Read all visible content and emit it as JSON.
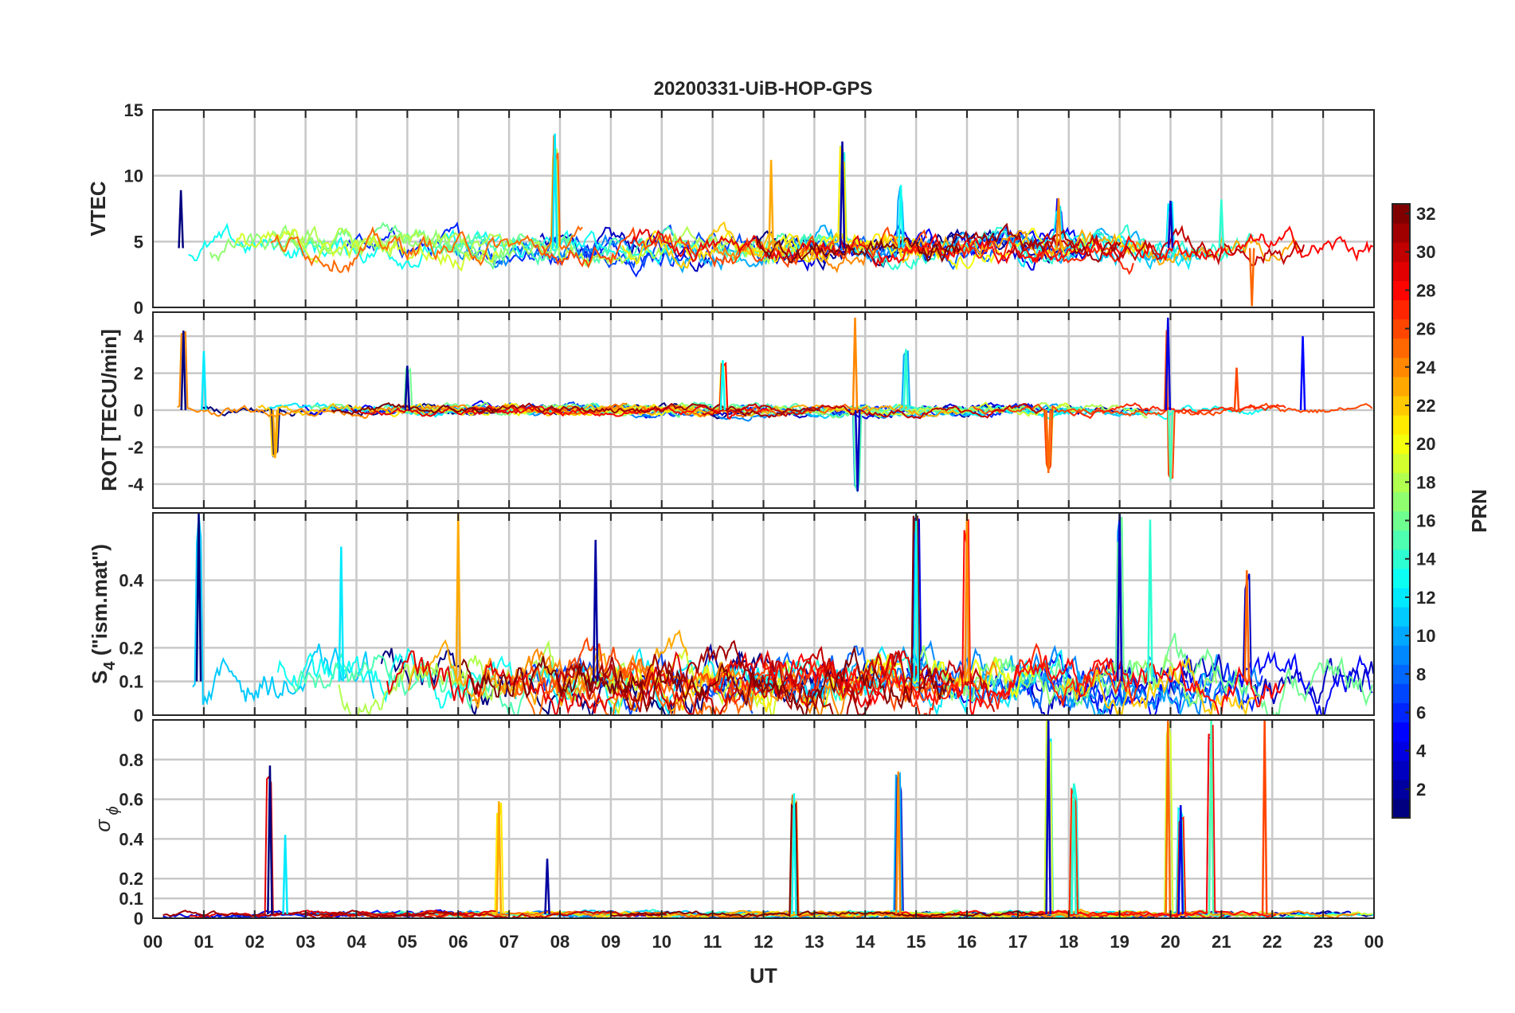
{
  "title": "20200331-UiB-HOP-GPS",
  "chart_data": {
    "type": "line",
    "title": "20200331-UiB-HOP-GPS",
    "xlabel": "UT",
    "x_ticks": [
      "00",
      "01",
      "02",
      "03",
      "04",
      "05",
      "06",
      "07",
      "08",
      "09",
      "10",
      "11",
      "12",
      "13",
      "14",
      "15",
      "16",
      "17",
      "18",
      "19",
      "20",
      "21",
      "22",
      "23",
      "00"
    ],
    "xlim": [
      0,
      24
    ],
    "panels": [
      {
        "id": "vtec",
        "ylabel": "VTEC",
        "ylim": [
          0,
          15
        ],
        "y_ticks": [
          0,
          5,
          10,
          15
        ],
        "y_tick_labels": [
          "0",
          "5",
          "10",
          "15"
        ],
        "baseline": 4.5,
        "amplitude": 1.2,
        "peaks": [
          [
            0.55,
            8.9
          ],
          [
            7.9,
            13.2
          ],
          [
            12.15,
            11.2
          ],
          [
            13.55,
            12.6
          ],
          [
            14.7,
            9.3
          ],
          [
            17.8,
            8.3
          ],
          [
            20.0,
            8.1
          ],
          [
            21.0,
            8.2
          ],
          [
            21.6,
            0.1
          ]
        ]
      },
      {
        "id": "rot",
        "ylabel": "ROT [TECU/min]",
        "ylim": [
          -5.3,
          5.3
        ],
        "y_ticks": [
          -4,
          -2,
          0,
          2,
          4
        ],
        "y_tick_labels": [
          "-4",
          "-2",
          "0",
          "2",
          "4"
        ],
        "baseline": 0,
        "amplitude": 0.3,
        "peaks": [
          [
            0.6,
            4.3
          ],
          [
            1.0,
            3.2
          ],
          [
            2.4,
            -2.6
          ],
          [
            5.0,
            2.4
          ],
          [
            11.2,
            2.7
          ],
          [
            13.8,
            5.0
          ],
          [
            13.85,
            -4.4
          ],
          [
            14.8,
            3.3
          ],
          [
            17.6,
            -3.4
          ],
          [
            19.95,
            5.0
          ],
          [
            20.0,
            -3.8
          ],
          [
            21.3,
            2.3
          ],
          [
            22.6,
            4.0
          ]
        ]
      },
      {
        "id": "s4",
        "ylabel_main": "S",
        "ylabel_sub": "4",
        "ylabel_suffix": " (\"ism.mat\")",
        "ylim": [
          0,
          0.6
        ],
        "y_ticks": [
          0,
          0.1,
          0.2,
          0.4
        ],
        "y_tick_labels": [
          "0",
          "0.1",
          "0.2",
          "0.4"
        ],
        "baseline": 0.1,
        "amplitude": 0.08,
        "peaks": [
          [
            0.9,
            0.6
          ],
          [
            3.7,
            0.5
          ],
          [
            6.0,
            0.6
          ],
          [
            8.7,
            0.52
          ],
          [
            15.0,
            0.6
          ],
          [
            16.0,
            0.6
          ],
          [
            19.0,
            0.6
          ],
          [
            19.6,
            0.58
          ],
          [
            21.5,
            0.43
          ]
        ]
      },
      {
        "id": "sigma_phi",
        "ylabel": "σ",
        "ylabel_sub": "ϕ",
        "ylim": [
          0,
          1
        ],
        "y_ticks": [
          0,
          0.1,
          0.2,
          0.4,
          0.6,
          0.8
        ],
        "y_tick_labels": [
          "0",
          "0.1",
          "0.2",
          "0.4",
          "0.6",
          "0.8"
        ],
        "baseline": 0.02,
        "amplitude": 0.015,
        "peaks": [
          [
            2.3,
            0.77
          ],
          [
            2.6,
            0.42
          ],
          [
            6.8,
            0.59
          ],
          [
            7.75,
            0.3
          ],
          [
            12.6,
            0.63
          ],
          [
            14.65,
            0.74
          ],
          [
            17.6,
            1.0
          ],
          [
            18.1,
            0.68
          ],
          [
            19.95,
            1.0
          ],
          [
            20.2,
            0.57
          ],
          [
            20.8,
            1.0
          ],
          [
            21.85,
            1.0
          ]
        ]
      }
    ],
    "series_count": 32,
    "colorbar": {
      "label": "PRN",
      "range": [
        1,
        32
      ],
      "ticks": [
        2,
        4,
        6,
        8,
        10,
        12,
        14,
        16,
        18,
        20,
        22,
        24,
        26,
        28,
        30,
        32
      ],
      "colormap": "jet"
    }
  }
}
